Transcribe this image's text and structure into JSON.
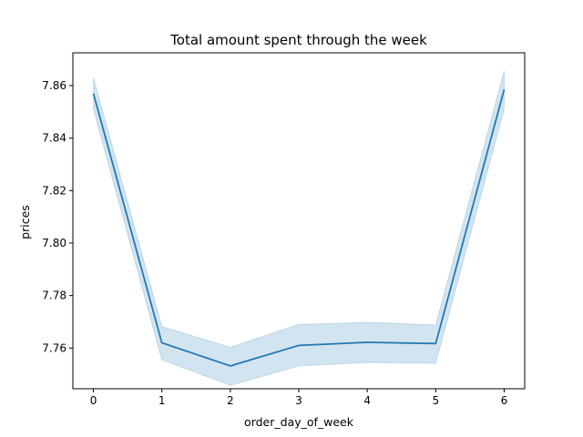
{
  "chart_data": {
    "type": "line",
    "title": "Total amount spent through the week",
    "xlabel": "order_day_of_week",
    "ylabel": "prices",
    "x": [
      0,
      1,
      2,
      3,
      4,
      5,
      6
    ],
    "xticks": [
      0,
      1,
      2,
      3,
      4,
      5,
      6
    ],
    "yticks": [
      7.76,
      7.78,
      7.8,
      7.82,
      7.84,
      7.86
    ],
    "xlim": [
      -0.3,
      6.3
    ],
    "ylim": [
      7.7445,
      7.8725
    ],
    "series": [
      {
        "values": [
          7.857,
          7.762,
          7.7532,
          7.761,
          7.7622,
          7.7617,
          7.8585
        ],
        "ci_lower": [
          7.851,
          7.7555,
          7.7458,
          7.7532,
          7.7545,
          7.7542,
          7.851
        ],
        "ci_upper": [
          7.863,
          7.7682,
          7.7603,
          7.769,
          7.7698,
          7.7688,
          7.8655
        ],
        "color": "#1f77b4",
        "band_color": "#1f77b4",
        "band_opacity": 0.2
      }
    ],
    "grid": false,
    "legend": "none"
  }
}
